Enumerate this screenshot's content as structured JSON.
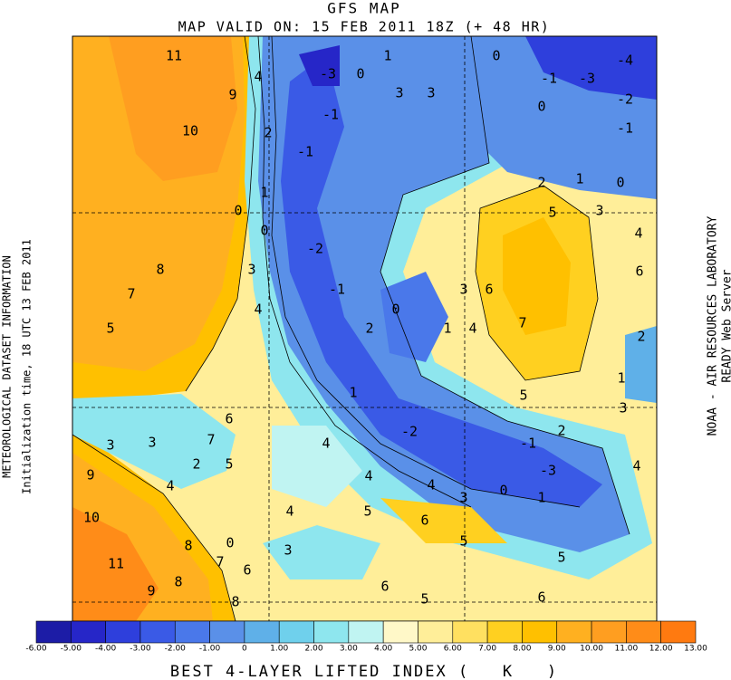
{
  "header": {
    "title": "GFS MAP",
    "subtitle": "MAP VALID ON: 15 FEB 2011 18Z (+ 48 HR)"
  },
  "side_left": [
    "METEOROLOGICAL DATASET INFORMATION",
    "Initialization time, 18 UTC 13 FEB 2011"
  ],
  "side_right": [
    "NOAA - AIR RESOURCES LABORATORY",
    "READY Web Server"
  ],
  "footer": {
    "label": "BEST 4-LAYER LIFTED INDEX (   K   )"
  },
  "colorbar": {
    "colors": [
      "#1c1ca6",
      "#2626c8",
      "#2e3fdc",
      "#3a5ae6",
      "#4a78ea",
      "#5a90e8",
      "#5fb0e8",
      "#6fd0ec",
      "#8ee6ee",
      "#c0f4f2",
      "#fff8c8",
      "#ffee99",
      "#ffe060",
      "#ffd020",
      "#ffc000",
      "#ffb020",
      "#ff9e20",
      "#ff8c18",
      "#ff7a10"
    ],
    "ticks": [
      {
        "value": -6,
        "label": "-6.00"
      },
      {
        "value": -5,
        "label": "-5.00"
      },
      {
        "value": -4,
        "label": "-4.00"
      },
      {
        "value": -3,
        "label": "-3.00"
      },
      {
        "value": -2,
        "label": "-2.00"
      },
      {
        "value": -1,
        "label": "-1.00"
      },
      0,
      {
        "value": 1,
        "label": "1.00"
      },
      {
        "value": 2,
        "label": "2.00"
      },
      {
        "value": 3,
        "label": "3.00"
      },
      {
        "value": 4,
        "label": "4.00"
      },
      {
        "value": 5,
        "label": "5.00"
      },
      {
        "value": 6,
        "label": "6.00"
      },
      {
        "value": 7,
        "label": "7.00"
      },
      {
        "value": 8,
        "label": "8.00"
      },
      {
        "value": 9,
        "label": "9.00"
      },
      {
        "value": 10,
        "label": "10.00"
      },
      {
        "value": 11,
        "label": "11.00"
      },
      {
        "value": 12,
        "label": "12.00"
      },
      {
        "value": 13,
        "label": "13.00"
      }
    ]
  },
  "contour_labels": [
    "11",
    "9",
    "10",
    "4",
    "2",
    "-1",
    "-3",
    "0",
    "1",
    "3",
    "3",
    "-1",
    "0",
    "-4",
    "-3",
    "-1",
    "-2",
    "0",
    "-1",
    "1",
    "0",
    "2",
    "5",
    "3",
    "4",
    "6",
    "6",
    "7",
    "3",
    "1",
    "4",
    "0",
    "2",
    "-1",
    "-2",
    "1",
    "0",
    "0",
    "3",
    "8",
    "7",
    "5",
    "4",
    "2",
    "1",
    "3",
    "5",
    "1",
    "-2",
    "-1",
    "-3",
    "2",
    "4",
    "1",
    "0",
    "3",
    "4",
    "4",
    "4",
    "6",
    "7",
    "5",
    "2",
    "3",
    "3",
    "9",
    "4",
    "10",
    "11",
    "9",
    "8",
    "8",
    "7",
    "6",
    "8",
    "4",
    "3",
    "5",
    "6",
    "5",
    "5",
    "6",
    "5",
    "6",
    "0"
  ]
}
